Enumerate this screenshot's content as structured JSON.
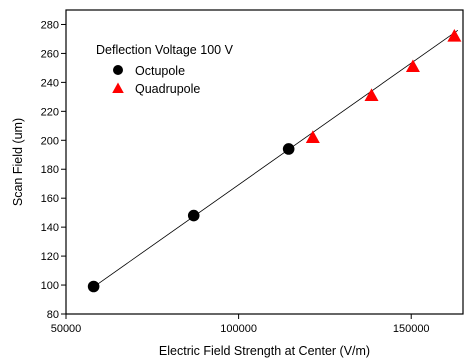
{
  "chart_data": {
    "type": "scatter",
    "title": "",
    "xlabel": "Electric Field Strength at Center (V/m)",
    "ylabel": "Scan Field (um)",
    "xlim": [
      50000,
      165000
    ],
    "ylim": [
      80,
      290
    ],
    "x_ticks": [
      50000,
      100000,
      150000
    ],
    "x_tick_labels": [
      "50000",
      "100000",
      "150000"
    ],
    "y_ticks": [
      80,
      100,
      120,
      140,
      160,
      180,
      200,
      220,
      240,
      260,
      280
    ],
    "y_tick_labels": [
      "80",
      "100",
      "120",
      "140",
      "160",
      "180",
      "200",
      "220",
      "240",
      "260",
      "280"
    ],
    "grid": false,
    "legend_title": "Deflection Voltage 100 V",
    "legend_position": "top-left",
    "series": [
      {
        "name": "Octupole",
        "marker": "circle",
        "color": "#000000",
        "points": [
          {
            "x": 58000,
            "y": 99
          },
          {
            "x": 87000,
            "y": 148
          },
          {
            "x": 114500,
            "y": 194
          }
        ]
      },
      {
        "name": "Quadrupole",
        "marker": "triangle",
        "color": "#ff0000",
        "points": [
          {
            "x": 121500,
            "y": 202
          },
          {
            "x": 138500,
            "y": 231
          },
          {
            "x": 150500,
            "y": 251
          },
          {
            "x": 162500,
            "y": 272
          }
        ]
      }
    ],
    "fit_line": {
      "color": "#000000",
      "from": {
        "x": 57000,
        "y": 97
      },
      "to": {
        "x": 163500,
        "y": 276
      }
    }
  }
}
